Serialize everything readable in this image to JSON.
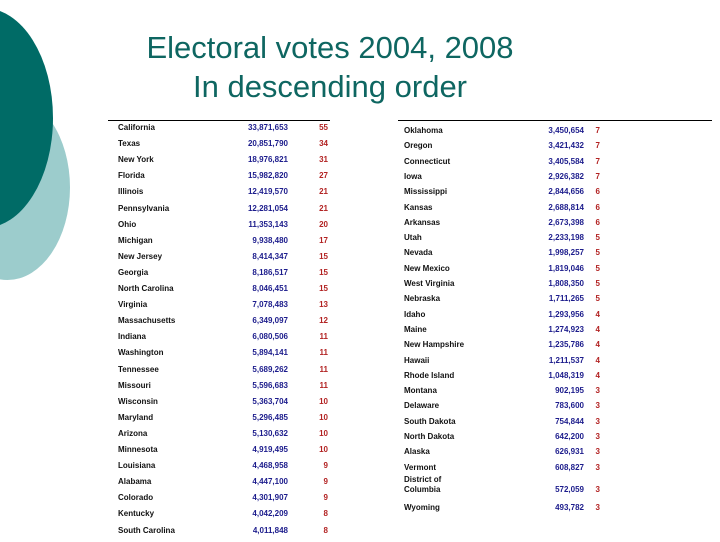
{
  "slide": {
    "title_line1": "Electoral votes 2004, 2008",
    "title_line2": "In descending order",
    "colors": {
      "title": "#0e6661",
      "circle_dark": "#006b66",
      "circle_light": "#9ccccc",
      "population": "#1c1c8c",
      "votes": "#b22222"
    }
  },
  "table_left": [
    {
      "state": "California",
      "population": "33,871,653",
      "votes": "55"
    },
    {
      "state": "Texas",
      "population": "20,851,790",
      "votes": "34"
    },
    {
      "state": "New York",
      "population": "18,976,821",
      "votes": "31"
    },
    {
      "state": "Florida",
      "population": "15,982,820",
      "votes": "27"
    },
    {
      "state": "Illinois",
      "population": "12,419,570",
      "votes": "21"
    },
    {
      "state": "Pennsylvania",
      "population": "12,281,054",
      "votes": "21"
    },
    {
      "state": "Ohio",
      "population": "11,353,143",
      "votes": "20"
    },
    {
      "state": "Michigan",
      "population": "9,938,480",
      "votes": "17"
    },
    {
      "state": "New Jersey",
      "population": "8,414,347",
      "votes": "15"
    },
    {
      "state": "Georgia",
      "population": "8,186,517",
      "votes": "15"
    },
    {
      "state": "North Carolina",
      "population": "8,046,451",
      "votes": "15"
    },
    {
      "state": "Virginia",
      "population": "7,078,483",
      "votes": "13"
    },
    {
      "state": "Massachusetts",
      "population": "6,349,097",
      "votes": "12"
    },
    {
      "state": "Indiana",
      "population": "6,080,506",
      "votes": "11"
    },
    {
      "state": "Washington",
      "population": "5,894,141",
      "votes": "11"
    },
    {
      "state": "Tennessee",
      "population": "5,689,262",
      "votes": "11"
    },
    {
      "state": "Missouri",
      "population": "5,596,683",
      "votes": "11"
    },
    {
      "state": "Wisconsin",
      "population": "5,363,704",
      "votes": "10"
    },
    {
      "state": "Maryland",
      "population": "5,296,485",
      "votes": "10"
    },
    {
      "state": "Arizona",
      "population": "5,130,632",
      "votes": "10"
    },
    {
      "state": "Minnesota",
      "population": "4,919,495",
      "votes": "10"
    },
    {
      "state": "Louisiana",
      "population": "4,468,958",
      "votes": "9"
    },
    {
      "state": "Alabama",
      "population": "4,447,100",
      "votes": "9"
    },
    {
      "state": "Colorado",
      "population": "4,301,907",
      "votes": "9"
    },
    {
      "state": "Kentucky",
      "population": "4,042,209",
      "votes": "8"
    },
    {
      "state": "South Carolina",
      "population": "4,011,848",
      "votes": "8"
    }
  ],
  "table_right": [
    {
      "state": "Oklahoma",
      "population": "3,450,654",
      "votes": "7"
    },
    {
      "state": "Oregon",
      "population": "3,421,432",
      "votes": "7"
    },
    {
      "state": "Connecticut",
      "population": "3,405,584",
      "votes": "7"
    },
    {
      "state": "Iowa",
      "population": "2,926,382",
      "votes": "7"
    },
    {
      "state": "Mississippi",
      "population": "2,844,656",
      "votes": "6"
    },
    {
      "state": "Kansas",
      "population": "2,688,814",
      "votes": "6"
    },
    {
      "state": "Arkansas",
      "population": "2,673,398",
      "votes": "6"
    },
    {
      "state": "Utah",
      "population": "2,233,198",
      "votes": "5"
    },
    {
      "state": "Nevada",
      "population": "1,998,257",
      "votes": "5"
    },
    {
      "state": "New Mexico",
      "population": "1,819,046",
      "votes": "5"
    },
    {
      "state": "West Virginia",
      "population": "1,808,350",
      "votes": "5"
    },
    {
      "state": "Nebraska",
      "population": "1,711,265",
      "votes": "5"
    },
    {
      "state": "Idaho",
      "population": "1,293,956",
      "votes": "4"
    },
    {
      "state": "Maine",
      "population": "1,274,923",
      "votes": "4"
    },
    {
      "state": "New Hampshire",
      "population": "1,235,786",
      "votes": "4"
    },
    {
      "state": "Hawaii",
      "population": "1,211,537",
      "votes": "4"
    },
    {
      "state": "Rhode Island",
      "population": "1,048,319",
      "votes": "4"
    },
    {
      "state": "Montana",
      "population": "902,195",
      "votes": "3"
    },
    {
      "state": "Delaware",
      "population": "783,600",
      "votes": "3"
    },
    {
      "state": "South Dakota",
      "population": "754,844",
      "votes": "3"
    },
    {
      "state": "North Dakota",
      "population": "642,200",
      "votes": "3"
    },
    {
      "state": "Alaska",
      "population": "626,931",
      "votes": "3"
    },
    {
      "state": "Vermont",
      "population": "608,827",
      "votes": "3"
    },
    {
      "state": "District of Columbia",
      "population": "572,059",
      "votes": "3"
    },
    {
      "state": "Wyoming",
      "population": "493,782",
      "votes": "3"
    }
  ]
}
